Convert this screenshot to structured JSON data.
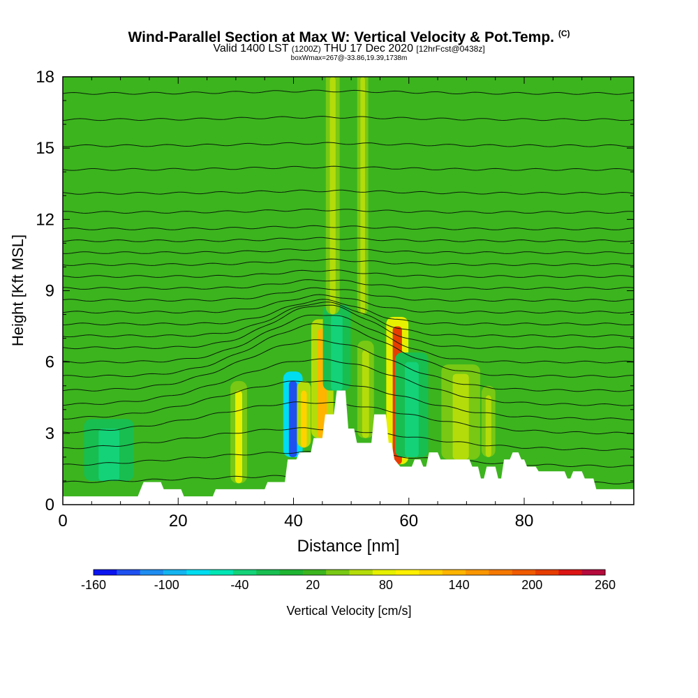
{
  "header": {
    "title": "Wind-Parallel Section at Max W: Vertical Velocity & Pot.Temp.",
    "copyright": "(C)",
    "valid_main": "Valid 1400 LST",
    "valid_utc": "(1200Z)",
    "valid_date": "THU 17 Dec 2020",
    "forecast": "[12hrFcst@0438z]",
    "box_wmax": "boxWmax=267@-33.86,19.39,1738m"
  },
  "chart_data": {
    "type": "heatmap",
    "xlabel": "Distance [nm]",
    "ylabel": "Height [Kft MSL]",
    "xlim": [
      0,
      99
    ],
    "ylim": [
      0,
      18
    ],
    "x_ticks": [
      0,
      20,
      40,
      60,
      80
    ],
    "y_ticks": [
      0,
      3,
      6,
      9,
      12,
      15,
      18
    ],
    "colorbar": {
      "label": "Vertical Velocity [cm/s]",
      "min": -160,
      "max": 260,
      "step": 20,
      "tick_labels": [
        "-160",
        "-100",
        "-40",
        "20",
        "80",
        "140",
        "200",
        "260"
      ],
      "colors": [
        "#0a14f0",
        "#1e50f0",
        "#1e8cf0",
        "#14b4f0",
        "#00dcf0",
        "#00e6b4",
        "#14d278",
        "#18be50",
        "#1eb432",
        "#3cb41e",
        "#78c814",
        "#b4dc0a",
        "#e6f000",
        "#fff000",
        "#ffd200",
        "#ffb400",
        "#fa9600",
        "#f57800",
        "#f05a00",
        "#e63c00",
        "#dc1414",
        "#b40a3c"
      ]
    },
    "terrain": [
      [
        0,
        0.35
      ],
      [
        13,
        0.35
      ],
      [
        13.5,
        0.65
      ],
      [
        14,
        0.95
      ],
      [
        17,
        0.95
      ],
      [
        17.5,
        0.65
      ],
      [
        20.5,
        0.65
      ],
      [
        21,
        0.35
      ],
      [
        26,
        0.35
      ],
      [
        26.5,
        0.65
      ],
      [
        35,
        0.65
      ],
      [
        35.5,
        0.95
      ],
      [
        38.5,
        0.95
      ],
      [
        39,
        1.9
      ],
      [
        40.5,
        1.9
      ],
      [
        41,
        2.2
      ],
      [
        43,
        2.2
      ],
      [
        43.5,
        2.8
      ],
      [
        45,
        2.8
      ],
      [
        45.5,
        3.8
      ],
      [
        47,
        3.8
      ],
      [
        47.5,
        4.8
      ],
      [
        49,
        4.8
      ],
      [
        49.5,
        3.2
      ],
      [
        50.5,
        3.2
      ],
      [
        51,
        2.6
      ],
      [
        53.5,
        2.6
      ],
      [
        54,
        3.8
      ],
      [
        56,
        3.8
      ],
      [
        56.5,
        2.6
      ],
      [
        57,
        2.6
      ],
      [
        57.5,
        1.9
      ],
      [
        58.5,
        1.6
      ],
      [
        60.5,
        1.6
      ],
      [
        61,
        1.9
      ],
      [
        62,
        1.9
      ],
      [
        62.5,
        1.6
      ],
      [
        63,
        1.6
      ],
      [
        63.5,
        2.2
      ],
      [
        65,
        2.2
      ],
      [
        65.5,
        1.9
      ],
      [
        70.5,
        1.9
      ],
      [
        71,
        1.6
      ],
      [
        72,
        1.6
      ],
      [
        72.5,
        1.1
      ],
      [
        73,
        1.1
      ],
      [
        73.5,
        1.6
      ],
      [
        75,
        1.6
      ],
      [
        75.5,
        1.1
      ],
      [
        76,
        1.1
      ],
      [
        76.5,
        1.9
      ],
      [
        77.5,
        1.9
      ],
      [
        78,
        2.2
      ],
      [
        79,
        2.2
      ],
      [
        79.5,
        1.9
      ],
      [
        80,
        1.9
      ],
      [
        80.5,
        1.6
      ],
      [
        82,
        1.6
      ],
      [
        82.5,
        1.4
      ],
      [
        87,
        1.4
      ],
      [
        87.5,
        1.1
      ],
      [
        88,
        1.1
      ],
      [
        88.5,
        1.4
      ],
      [
        90,
        1.4
      ],
      [
        90.5,
        1.1
      ],
      [
        92,
        1.1
      ],
      [
        92.5,
        0.65
      ],
      [
        99,
        0.65
      ]
    ],
    "vertical_velocity_features": [
      {
        "x": 30.5,
        "x_half_width": 0.6,
        "y_bottom": 0.9,
        "y_top": 4.8,
        "value": 80,
        "halo_value": 40
      },
      {
        "x": 39.9,
        "x_half_width": 0.7,
        "y_bottom": 2.0,
        "y_top": 5.2,
        "value": -140,
        "halo_value": -80
      },
      {
        "x": 41.8,
        "x_half_width": 0.5,
        "y_bottom": 2.4,
        "y_top": 4.8,
        "value": 120,
        "halo_value": 60
      },
      {
        "x": 45.0,
        "x_half_width": 0.8,
        "y_bottom": 2.8,
        "y_top": 7.4,
        "value": 140,
        "halo_value": 60
      },
      {
        "x": 47.5,
        "x_half_width": 1.0,
        "y_bottom": 4.8,
        "y_top": 8.0,
        "value": -40,
        "halo_value": -20
      },
      {
        "x": 52.5,
        "x_half_width": 0.6,
        "y_bottom": 2.8,
        "y_top": 6.5,
        "value": 60,
        "halo_value": 40
      },
      {
        "x": 58.0,
        "x_half_width": 0.8,
        "y_bottom": 1.7,
        "y_top": 7.5,
        "value": 220,
        "halo_value": 80
      },
      {
        "x": 60.5,
        "x_half_width": 1.2,
        "y_bottom": 2.0,
        "y_top": 6.0,
        "value": -40,
        "halo_value": -20
      },
      {
        "x": 69.0,
        "x_half_width": 1.4,
        "y_bottom": 1.9,
        "y_top": 5.5,
        "value": 60,
        "halo_value": 40
      },
      {
        "x": 73.8,
        "x_half_width": 0.5,
        "y_bottom": 2.0,
        "y_top": 4.6,
        "value": 60,
        "halo_value": 40
      },
      {
        "x": 8.0,
        "x_half_width": 1.8,
        "y_bottom": 1.0,
        "y_top": 3.2,
        "value": -40,
        "halo_value": -20
      },
      {
        "x": 46.8,
        "x_half_width": 0.5,
        "y_bottom": 8.0,
        "y_top": 18.0,
        "value": 60,
        "halo_value": 40
      },
      {
        "x": 52.0,
        "x_half_width": 0.4,
        "y_bottom": 8.0,
        "y_top": 18.0,
        "value": 60,
        "halo_value": 40
      }
    ],
    "theta_contours": [
      {
        "base": 0.9,
        "amp": 0.3,
        "center": 42,
        "width": 30
      },
      {
        "base": 1.6,
        "amp": 0.6,
        "center": 42,
        "width": 28
      },
      {
        "base": 2.3,
        "amp": 0.9,
        "center": 42,
        "width": 26
      },
      {
        "base": 3.0,
        "amp": 1.3,
        "center": 43,
        "width": 24
      },
      {
        "base": 3.6,
        "amp": 1.6,
        "center": 43,
        "width": 22
      },
      {
        "base": 4.2,
        "amp": 1.9,
        "center": 44,
        "width": 20
      },
      {
        "base": 4.8,
        "amp": 2.1,
        "center": 44,
        "width": 18
      },
      {
        "base": 5.4,
        "amp": 2.2,
        "center": 45,
        "width": 16
      },
      {
        "base": 6.0,
        "amp": 2.0,
        "center": 45,
        "width": 14
      },
      {
        "base": 6.6,
        "amp": 1.8,
        "center": 45,
        "width": 12
      },
      {
        "base": 7.1,
        "amp": 1.4,
        "center": 45,
        "width": 11
      },
      {
        "base": 7.6,
        "amp": 1.0,
        "center": 45,
        "width": 10
      },
      {
        "base": 8.1,
        "amp": 0.7,
        "center": 45,
        "width": 10
      },
      {
        "base": 8.6,
        "amp": 0.5,
        "center": 45,
        "width": 10
      },
      {
        "base": 9.1,
        "amp": 0.35,
        "center": 45,
        "width": 10
      },
      {
        "base": 9.6,
        "amp": 0.25,
        "center": 45,
        "width": 10
      },
      {
        "base": 10.1,
        "amp": 0.2,
        "center": 45,
        "width": 12
      },
      {
        "base": 10.6,
        "amp": 0.15,
        "center": 45,
        "width": 12
      },
      {
        "base": 11.1,
        "amp": 0.1,
        "center": 45,
        "width": 12
      },
      {
        "base": 11.6,
        "amp": 0.1,
        "center": 45,
        "width": 14
      },
      {
        "base": 12.3,
        "amp": 0.1,
        "center": 45,
        "width": 14
      },
      {
        "base": 13.1,
        "amp": 0.1,
        "center": 45,
        "width": 16
      },
      {
        "base": 14.1,
        "amp": 0.1,
        "center": 45,
        "width": 16
      },
      {
        "base": 15.1,
        "amp": 0.1,
        "center": 45,
        "width": 18
      },
      {
        "base": 16.2,
        "amp": 0.1,
        "center": 45,
        "width": 18
      },
      {
        "base": 17.3,
        "amp": 0.1,
        "center": 45,
        "width": 18
      }
    ]
  }
}
